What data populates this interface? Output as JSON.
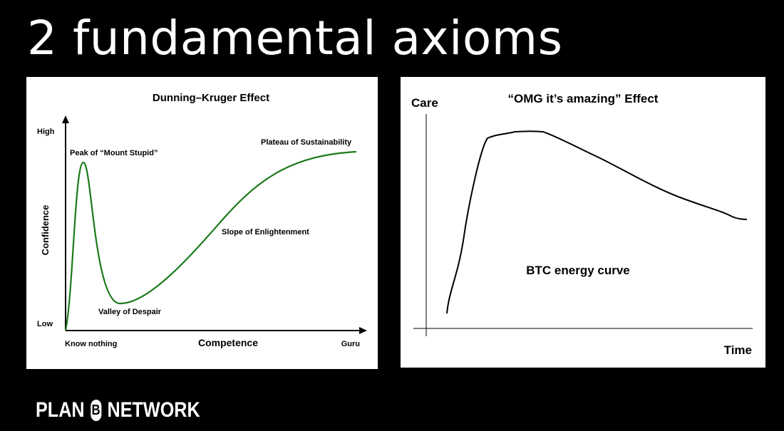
{
  "slide": {
    "title": "2 fundamental axioms",
    "logo_left": "PLAN",
    "logo_symbol": "B",
    "logo_right": "NETWORK"
  },
  "colors": {
    "background": "#000000",
    "panel": "#ffffff",
    "dk_curve": "#1a7a1a",
    "omg_curve": "#000000"
  },
  "dunning_kruger": {
    "title": "Dunning–Kruger Effect",
    "ylabel": "Confidence",
    "xlabel": "Competence",
    "y_high": "High",
    "y_low": "Low",
    "x_start": "Know nothing",
    "x_end": "Guru",
    "annotations": {
      "peak": "Peak of “Mount Stupid”",
      "valley": "Valley of Despair",
      "slope": "Slope of Enlightenment",
      "plateau": "Plateau of Sustainability"
    }
  },
  "omg": {
    "title": "“OMG it’s amazing” Effect",
    "ylabel": "Care",
    "xlabel": "Time",
    "annotation": "BTC energy curve"
  }
}
